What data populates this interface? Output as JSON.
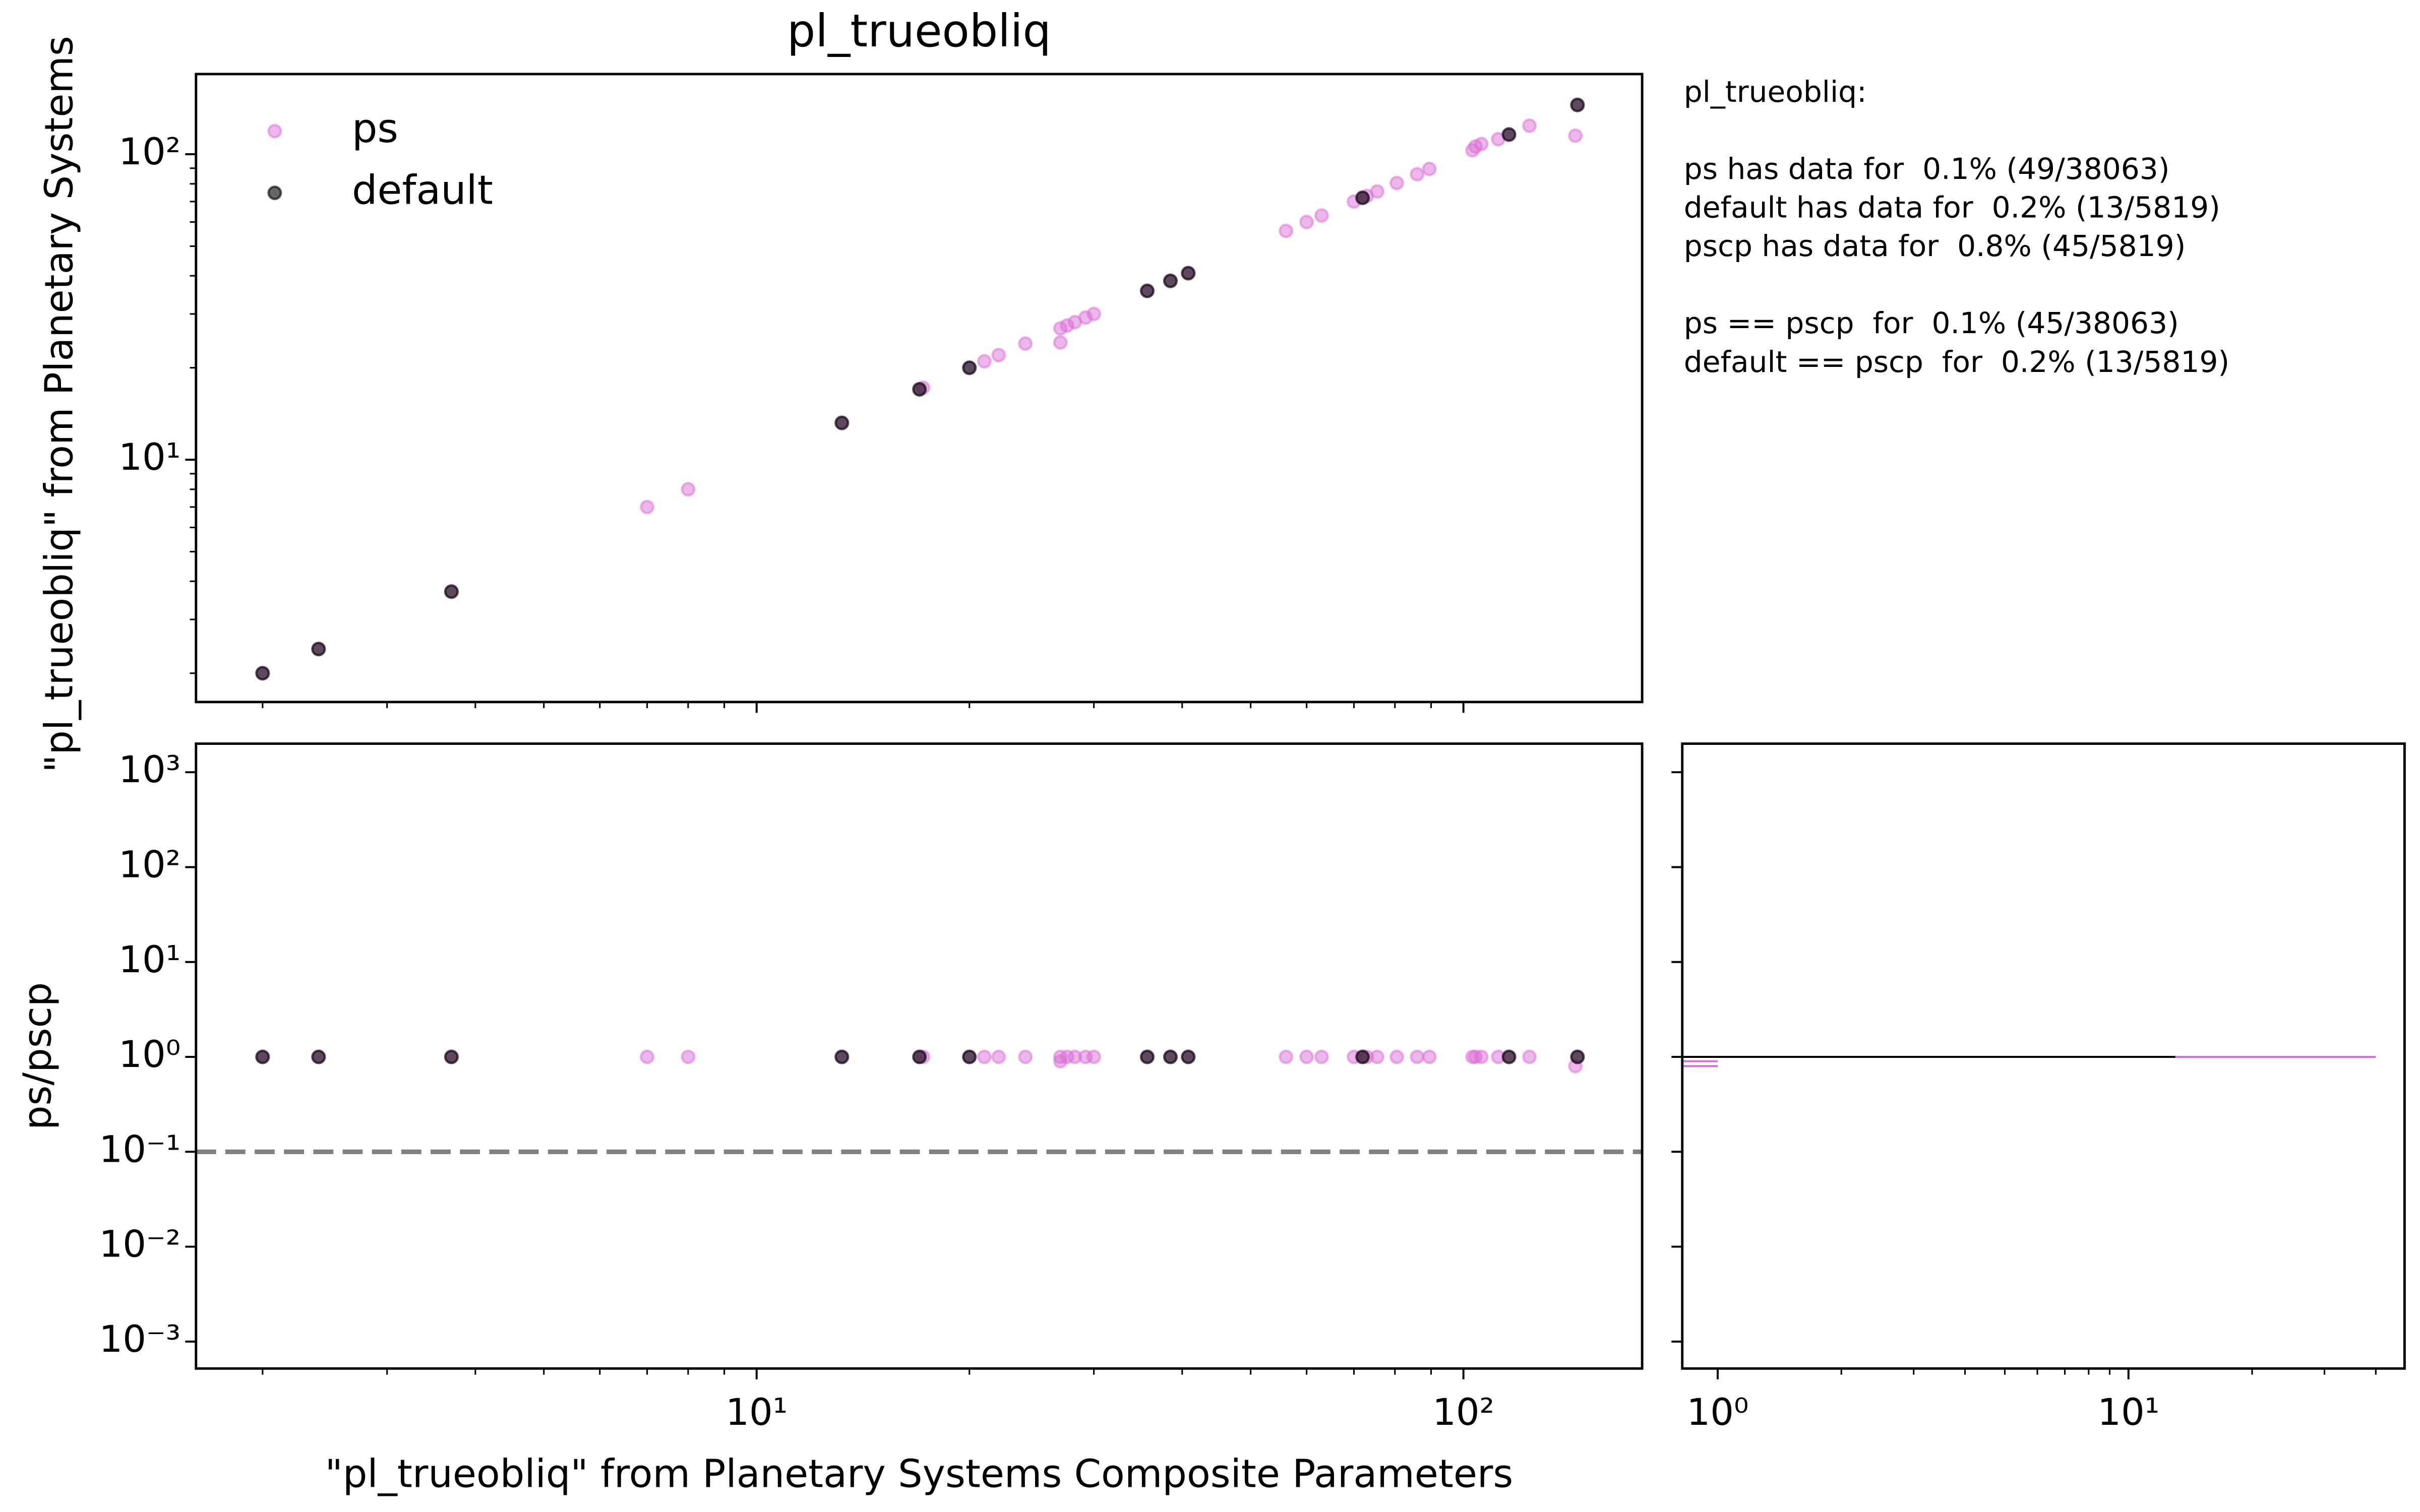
{
  "chart_data": [
    {
      "type": "scatter",
      "title": "pl_trueobliq",
      "ylabel": "\"pl_trueobliq\" from Planetary Systems",
      "xscale": "log",
      "yscale": "log",
      "xlim": [
        1.61,
        179
      ],
      "ylim": [
        1.61,
        183
      ],
      "xticks": [
        10,
        100
      ],
      "show_xtick_labels": false,
      "yticks": [
        {
          "value": 10,
          "label": "10¹"
        },
        {
          "value": 100,
          "label": "10²"
        }
      ],
      "xticks_minor": [
        2,
        3,
        4,
        5,
        6,
        7,
        8,
        9,
        20,
        30,
        40,
        50,
        60,
        70,
        80,
        90
      ],
      "yticks_minor": [
        2,
        3,
        4,
        5,
        6,
        7,
        8,
        9,
        20,
        30,
        40,
        50,
        60,
        70,
        80,
        90
      ],
      "legend": "upper left",
      "series": [
        {
          "name": "ps",
          "color": "#da70d6",
          "opacity": 0.5,
          "x": [
            2.0,
            2.4,
            3.7,
            7.0,
            8.0,
            13.2,
            17.0,
            17.2,
            20.0,
            21.0,
            22.0,
            24.0,
            26.9,
            26.9,
            27.5,
            28.2,
            29.2,
            30.0,
            35.7,
            38.5,
            40.8,
            56.1,
            60,
            63,
            70,
            72,
            73,
            75.5,
            80.5,
            86,
            89.5,
            103,
            104,
            106,
            112,
            116,
            124,
            144,
            145
          ],
          "values": [
            2.0,
            2.4,
            3.7,
            7.0,
            8.0,
            13.2,
            17.0,
            17.2,
            20.0,
            21.0,
            22.0,
            24.0,
            26.9,
            24.2,
            27.5,
            28.2,
            29.2,
            30.0,
            35.7,
            38.5,
            40.8,
            56.1,
            60,
            63,
            70,
            72,
            73,
            75.5,
            80.5,
            86,
            89.5,
            103,
            106,
            108,
            112,
            116,
            124,
            115,
            145
          ]
        },
        {
          "name": "default",
          "color": "#000000",
          "opacity": 0.6,
          "x": [
            2.0,
            2.4,
            3.7,
            13.2,
            17.0,
            20.0,
            35.7,
            38.5,
            40.8,
            72,
            116,
            145
          ],
          "values": [
            2.0,
            2.4,
            3.7,
            13.2,
            17.0,
            20.0,
            35.7,
            38.5,
            40.8,
            72,
            116,
            145
          ]
        }
      ],
      "annotations": [
        [
          "pl_trueobliq:"
        ],
        [
          "ps has data for  0.1% (49/38063)",
          "default has data for  0.2% (13/5819)",
          "pscp has data for  0.8% (45/5819)"
        ],
        [
          "ps == pscp  for  0.1% (45/38063)",
          "default == pscp  for  0.2% (13/5819)"
        ]
      ]
    },
    {
      "type": "scatter",
      "xlabel": "\"pl_trueobliq\" from Planetary Systems Composite Parameters",
      "ylabel": "ps/pscp",
      "xscale": "log",
      "yscale": "log",
      "xlim": [
        1.61,
        179
      ],
      "ylim": [
        0.00052,
        2000
      ],
      "xticks": [
        {
          "value": 10,
          "label": "10¹"
        },
        {
          "value": 100,
          "label": "10²"
        }
      ],
      "show_xtick_labels": true,
      "yticks": [
        {
          "value": 0.001,
          "label": "10⁻³"
        },
        {
          "value": 0.01,
          "label": "10⁻²"
        },
        {
          "value": 0.1,
          "label": "10⁻¹"
        },
        {
          "value": 1,
          "label": "10⁰"
        },
        {
          "value": 10,
          "label": "10¹"
        },
        {
          "value": 100,
          "label": "10²"
        },
        {
          "value": 1000,
          "label": "10³"
        }
      ],
      "xticks_minor": [
        2,
        3,
        4,
        5,
        6,
        7,
        8,
        9,
        20,
        30,
        40,
        50,
        60,
        70,
        80,
        90
      ],
      "hline": {
        "value": 0.1,
        "color": "#808080"
      },
      "series": [
        {
          "name": "ps",
          "color": "#da70d6",
          "opacity": 0.5,
          "x": [
            2.0,
            2.4,
            3.7,
            7.0,
            8.0,
            13.2,
            17.0,
            17.2,
            20.0,
            21.0,
            22.0,
            24.0,
            26.9,
            26.9,
            27.5,
            28.2,
            29.2,
            30.0,
            35.7,
            38.5,
            40.8,
            56.1,
            60,
            63,
            70,
            72,
            73,
            75.5,
            80.5,
            86,
            89.5,
            103,
            104,
            106,
            112,
            116,
            124,
            144,
            145
          ],
          "values": [
            1,
            1,
            1,
            1,
            1,
            1,
            1,
            1,
            1,
            1,
            1,
            1,
            1,
            0.9,
            1,
            1,
            1,
            1,
            1,
            1,
            1,
            1,
            1,
            1,
            1,
            1,
            1,
            1,
            1,
            1,
            1,
            1,
            1,
            1,
            1,
            1,
            1,
            0.8,
            1
          ]
        },
        {
          "name": "default",
          "color": "#000000",
          "opacity": 0.6,
          "x": [
            2.0,
            2.4,
            3.7,
            13.2,
            17.0,
            20.0,
            35.7,
            38.5,
            40.8,
            72,
            116,
            145
          ],
          "values": [
            1,
            1,
            1,
            1,
            1,
            1,
            1,
            1,
            1,
            1,
            1,
            1
          ]
        }
      ]
    },
    {
      "type": "hbar",
      "xscale": "log",
      "yscale": "log",
      "xlim": [
        0.82,
        47
      ],
      "ylim": [
        0.00052,
        2000
      ],
      "xticks": [
        {
          "value": 1,
          "label": "10⁰"
        },
        {
          "value": 10,
          "label": "10¹"
        }
      ],
      "show_xtick_labels": true,
      "yticks": [
        0.001,
        0.01,
        0.1,
        1,
        10,
        100,
        1000
      ],
      "show_ytick_labels": false,
      "xticks_minor": [
        2,
        3,
        4,
        5,
        6,
        7,
        8,
        9,
        20,
        30,
        40
      ],
      "series": [
        {
          "name": "ps",
          "color": "#da70d6",
          "y": [
            1,
            0.9,
            0.8
          ],
          "values": [
            40,
            1,
            1
          ]
        },
        {
          "name": "default",
          "color": "#000000",
          "y": [
            1
          ],
          "values": [
            13
          ]
        }
      ]
    }
  ]
}
